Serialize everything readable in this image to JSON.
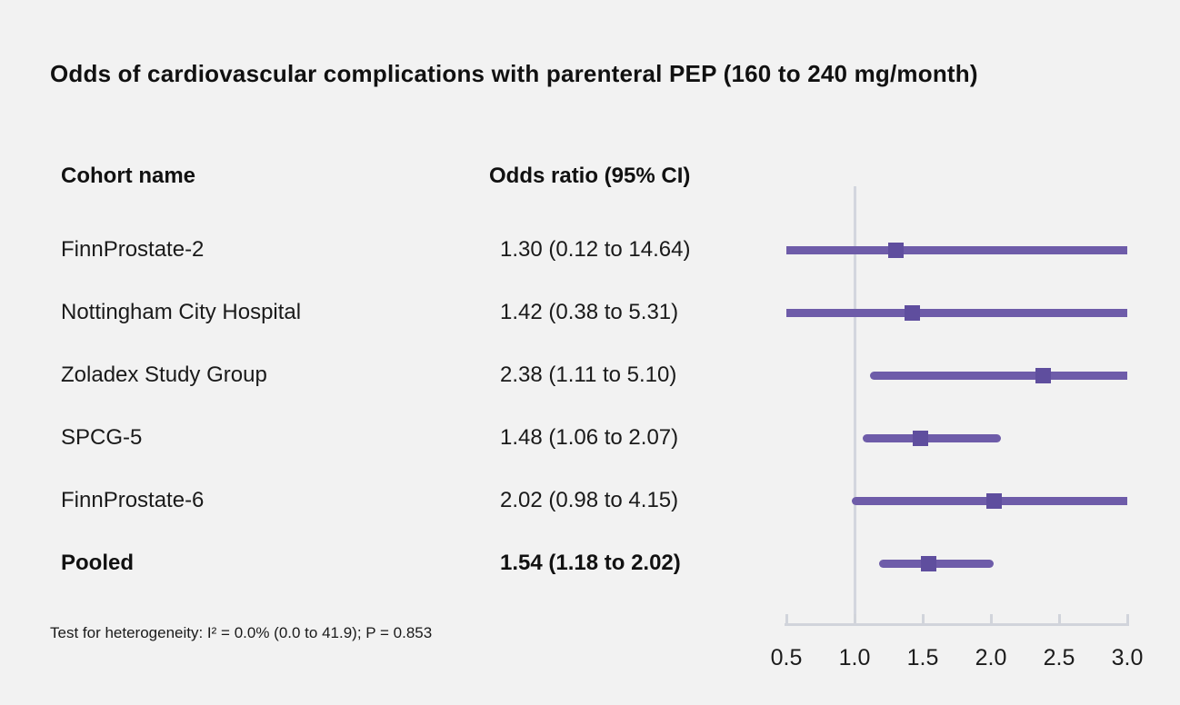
{
  "title": "Odds of cardiovascular complications with parenteral PEP (160 to 240 mg/month)",
  "columns": {
    "cohort": "Cohort name",
    "odds_ratio": "Odds ratio (95% CI)"
  },
  "footnote": "Test for heterogeneity: I² = 0.0% (0.0 to 41.9); P = 0.853",
  "chart_data": {
    "type": "forest",
    "title": "Odds of cardiovascular complications with parenteral PEP (160 to 240 mg/month)",
    "xlim": [
      0.5,
      3.0
    ],
    "x_ticks": [
      0.5,
      1.0,
      1.5,
      2.0,
      2.5,
      3.0
    ],
    "reference_line": 1.0,
    "rows": [
      {
        "label": "FinnProstate-2",
        "or_text": "1.30 (0.12 to 14.64)",
        "estimate": 1.3,
        "ci_low": 0.12,
        "ci_high": 14.64,
        "bold": false
      },
      {
        "label": "Nottingham City Hospital",
        "or_text": "1.42 (0.38 to 5.31)",
        "estimate": 1.42,
        "ci_low": 0.38,
        "ci_high": 5.31,
        "bold": false
      },
      {
        "label": "Zoladex Study Group",
        "or_text": "2.38 (1.11 to 5.10)",
        "estimate": 2.38,
        "ci_low": 1.11,
        "ci_high": 5.1,
        "bold": false
      },
      {
        "label": "SPCG-5",
        "or_text": "1.48 (1.06 to 2.07)",
        "estimate": 1.48,
        "ci_low": 1.06,
        "ci_high": 2.07,
        "bold": false
      },
      {
        "label": "FinnProstate-6",
        "or_text": "2.02 (0.98 to 4.15)",
        "estimate": 2.02,
        "ci_low": 0.98,
        "ci_high": 4.15,
        "bold": false
      },
      {
        "label": "Pooled",
        "or_text": "1.54 (1.18 to 2.02)",
        "estimate": 1.54,
        "ci_low": 1.18,
        "ci_high": 2.02,
        "bold": true
      }
    ],
    "colors": {
      "ci_line": "#6e5ca9",
      "marker": "#5f4e9e",
      "axis": "#d1d4db",
      "reference": "#d3d6de",
      "background": "#f2f2f2",
      "text": "#1a1a1a"
    },
    "layout_hints": {
      "grid": false,
      "legend": "none",
      "scale": "linear",
      "arms_clipped_at_xlim": true
    }
  }
}
